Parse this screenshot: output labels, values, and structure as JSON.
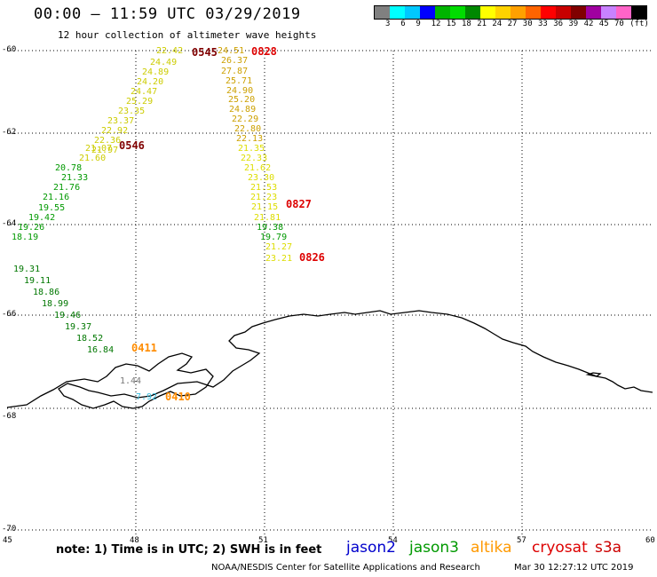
{
  "title": "00:00 – 11:59 UTC 03/29/2019",
  "subtitle": "12 hour collection of altimeter wave heights",
  "scale": {
    "colors": [
      "#808080",
      "#00ffff",
      "#00c8ff",
      "#0000ff",
      "#00b400",
      "#00dc00",
      "#008800",
      "#ffff00",
      "#ffd200",
      "#ffa000",
      "#ff6400",
      "#ff0000",
      "#c80000",
      "#800000",
      "#a000a0",
      "#c882ff",
      "#ff64c8",
      "#000000"
    ],
    "labels": [
      "3",
      "6",
      "9",
      "12",
      "15",
      "18",
      "21",
      "24",
      "27",
      "30",
      "33",
      "36",
      "39",
      "42",
      "45",
      "70",
      "(ft)"
    ]
  },
  "axes": {
    "lat_labels": [
      "-60",
      "-62",
      "-64",
      "-66",
      "-68",
      "-70"
    ],
    "lon_labels": [
      "45",
      "48",
      "51",
      "54",
      "57",
      "60"
    ]
  },
  "tracks": [
    {
      "color": "#cccc00",
      "values": [
        "22.42",
        "24.49",
        "24.89",
        "24.20",
        "24.47",
        "25.29",
        "23.35",
        "23.37",
        "22.92",
        "22.36",
        "21.97",
        "21.07",
        "21.60"
      ]
    },
    {
      "color": "#009900",
      "values": [
        "20.78",
        "21.33",
        "21.76",
        "21.16",
        "19.55",
        "19.42",
        "19.26",
        "18.19"
      ]
    },
    {
      "color": "#cca000",
      "values": [
        "24.51",
        "26.37",
        "27.87",
        "25.71",
        "24.90",
        "25.20",
        "24.89",
        "22.29",
        "22.80",
        "22.13"
      ]
    },
    {
      "color": "#dddd00",
      "values": [
        "21.35",
        "22.33",
        "21.62",
        "23.30",
        "21.53",
        "21.23",
        "21.15",
        "21.81"
      ]
    },
    {
      "color": "#009900",
      "values": [
        "19.38",
        "19.79"
      ]
    },
    {
      "color": "#dddd00",
      "values": [
        "21.27",
        "23.21"
      ]
    },
    {
      "color": "#007700",
      "values": [
        "19.31",
        "19.11",
        "18.86",
        "18.99",
        "19.46",
        "19.37",
        "18.52",
        "16.84"
      ]
    },
    {
      "color": "#777777",
      "values": [
        "1.44"
      ]
    },
    {
      "color": "#33bbdd",
      "values": [
        "7.92"
      ]
    }
  ],
  "time_labels": [
    {
      "text": "0545",
      "color": "#800000"
    },
    {
      "text": "0828",
      "color": "#dd0000"
    },
    {
      "text": "0546",
      "color": "#800000"
    },
    {
      "text": "0827",
      "color": "#dd0000"
    },
    {
      "text": "0826",
      "color": "#dd0000"
    },
    {
      "text": "0411",
      "color": "#ff8c00"
    },
    {
      "text": "0410",
      "color": "#ff8c00"
    }
  ],
  "note": "note: 1) Time is in UTC; 2) SWH is in feet",
  "legend": [
    {
      "name": "jason2",
      "color": "#0000cc"
    },
    {
      "name": "jason3",
      "color": "#009900"
    },
    {
      "name": "altika",
      "color": "#ff9900"
    },
    {
      "name": "cryosat",
      "color": "#dd0000"
    },
    {
      "name": "s3a",
      "color": "#cc0000"
    }
  ],
  "footer": "NOAA/NESDIS Center for Satellite Applications and Research",
  "footer_time": "Mar 30 12:27:12 UTC 2019"
}
